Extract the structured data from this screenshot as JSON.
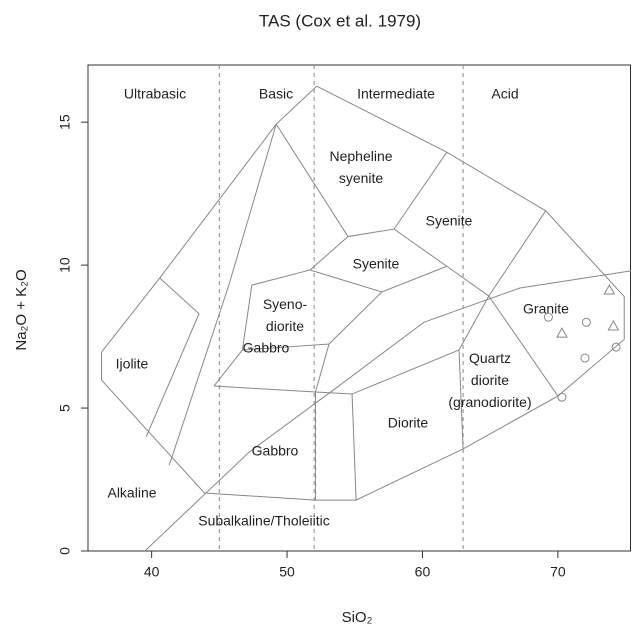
{
  "chart_data": {
    "type": "scatter",
    "title": "TAS (Cox et al. 1979)",
    "x_label": "SiO₂",
    "y_label": "Na₂O + K₂O",
    "xlim": [
      35.3,
      75.4
    ],
    "ylim": [
      0,
      17
    ],
    "xticks": [
      40,
      50,
      60,
      70
    ],
    "yticks": [
      0,
      5,
      10,
      15
    ],
    "dividers": [
      45,
      52,
      63
    ],
    "groups": [
      "Ultrabasic",
      "Basic",
      "Intermediate",
      "Acid"
    ],
    "fields": [
      "Nepheline syenite",
      "Syenite",
      "Syenite",
      "Syeno-diorite",
      "Granite",
      "Ijolite",
      "Gabbro",
      "Quartz diorite (granodiorite)",
      "Diorite",
      "Gabbro",
      "Alkaline",
      "Subalkaline/Tholeiitic"
    ],
    "boundaries": [
      {
        "x": [
          52.2,
          49.2,
          40.6,
          36.3,
          36.3,
          43.9,
          52.1,
          55.1,
          63.0,
          70.0,
          74.9,
          74.9,
          69.1,
          61.8,
          52.2
        ],
        "y": [
          16.26,
          14.93,
          9.55,
          6.96,
          5.98,
          2.03,
          1.78,
          1.78,
          3.57,
          5.42,
          7.4,
          8.9,
          11.9,
          13.95,
          16.26
        ]
      },
      {
        "x": [
          40.6,
          43.5,
          39.6
        ],
        "y": [
          9.55,
          8.3,
          4.0
        ]
      },
      {
        "x": [
          41.3,
          45.7,
          49.2
        ],
        "y": [
          3.0,
          9.3,
          14.93
        ]
      },
      {
        "x": [
          49.2,
          54.5,
          57.9,
          61.8
        ],
        "y": [
          14.93,
          11.0,
          11.26,
          13.95
        ]
      },
      {
        "x": [
          57.9,
          61.8,
          64.9,
          69.1
        ],
        "y": [
          11.26,
          9.96,
          8.92,
          11.9
        ]
      },
      {
        "x": [
          54.5,
          51.7,
          47.4,
          46.7,
          44.6
        ],
        "y": [
          11.0,
          9.83,
          9.3,
          7.03,
          5.77
        ]
      },
      {
        "x": [
          51.7,
          57.0,
          61.8
        ],
        "y": [
          9.83,
          9.06,
          9.96
        ]
      },
      {
        "x": [
          46.7,
          53.1,
          52.1
        ],
        "y": [
          7.03,
          7.24,
          5.56
        ]
      },
      {
        "x": [
          53.1,
          57.0
        ],
        "y": [
          7.24,
          9.06
        ]
      },
      {
        "x": [
          44.6,
          52.1,
          54.8,
          62.7,
          64.9
        ],
        "y": [
          5.77,
          5.56,
          5.49,
          7.03,
          8.92
        ]
      },
      {
        "x": [
          52.1,
          52.1
        ],
        "y": [
          5.56,
          1.78
        ]
      },
      {
        "x": [
          54.8,
          55.1
        ],
        "y": [
          5.49,
          1.78
        ]
      },
      {
        "x": [
          62.7,
          63.0
        ],
        "y": [
          7.03,
          3.57
        ]
      },
      {
        "x": [
          64.9,
          70.0
        ],
        "y": [
          8.92,
          5.42
        ]
      },
      {
        "x": [
          39.5,
          47.2,
          53.9,
          60.1,
          67.2,
          75.4
        ],
        "y": [
          0,
          3.46,
          5.8,
          8.0,
          9.2,
          9.8
        ]
      }
    ],
    "series": [
      {
        "marker": "circle",
        "color": "#888888",
        "x": [
          69.3,
          72.1,
          72.0,
          74.3,
          70.3
        ],
        "y": [
          8.18,
          8.0,
          6.75,
          7.13,
          5.38
        ]
      },
      {
        "marker": "triangle",
        "color": "#888888",
        "x": [
          73.8,
          70.3,
          74.1
        ],
        "y": [
          9.13,
          7.62,
          7.87
        ]
      }
    ]
  }
}
